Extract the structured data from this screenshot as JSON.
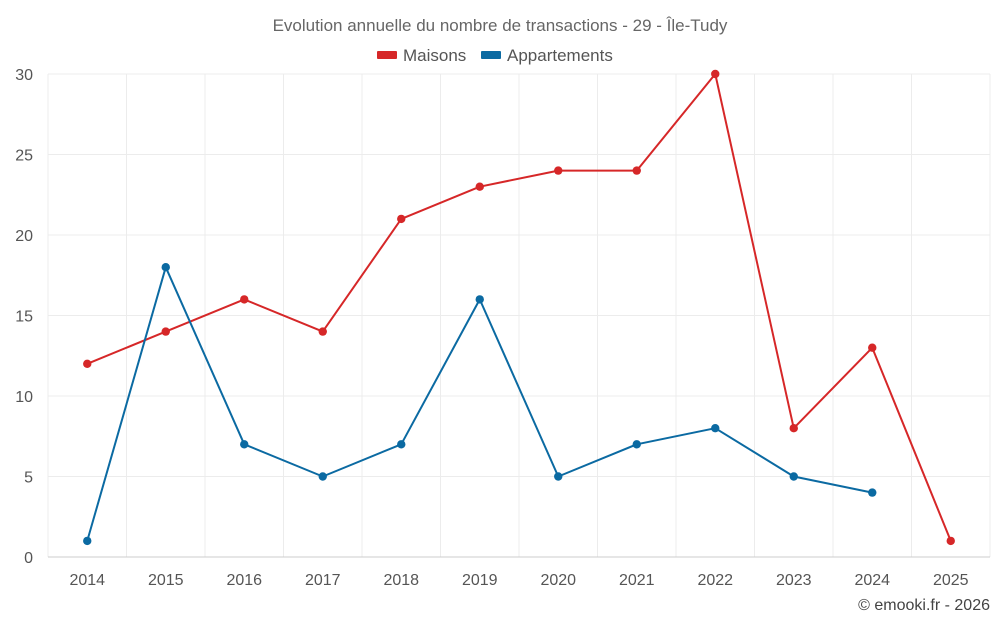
{
  "chart_data": {
    "type": "line",
    "title": "Evolution annuelle du nombre de transactions - 29 - Île-Tudy",
    "categories": [
      "2014",
      "2015",
      "2016",
      "2017",
      "2018",
      "2019",
      "2020",
      "2021",
      "2022",
      "2023",
      "2024",
      "2025"
    ],
    "ylim": [
      0,
      30
    ],
    "yticks": [
      0,
      5,
      10,
      15,
      20,
      25,
      30
    ],
    "grid": true,
    "legend_position": "top-center",
    "series": [
      {
        "name": "Maisons",
        "color": "#d62728",
        "values": [
          12,
          14,
          16,
          14,
          21,
          23,
          24,
          24,
          30,
          8,
          13,
          1
        ]
      },
      {
        "name": "Appartements",
        "color": "#0b6aa2",
        "values": [
          1,
          18,
          7,
          5,
          7,
          16,
          5,
          7,
          8,
          5,
          4,
          null
        ]
      }
    ]
  },
  "credit": "© emooki.fr - 2026"
}
